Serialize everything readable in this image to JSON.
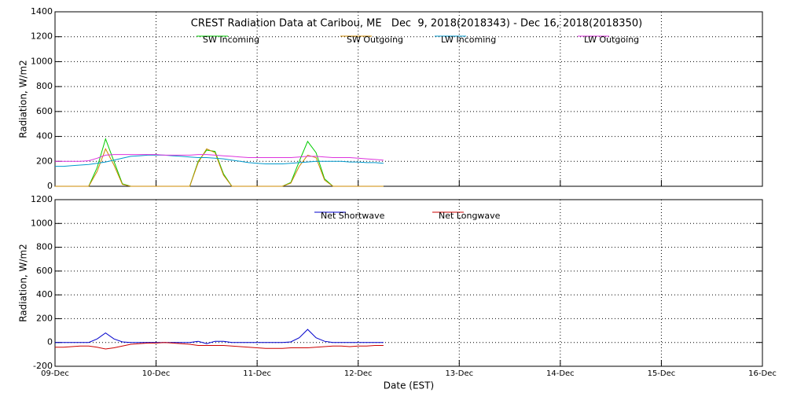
{
  "chart_data": [
    {
      "type": "line",
      "title": "CREST Radiation Data at Caribou, ME   Dec  9, 2018(2018343) - Dec 16, 2018(2018350)",
      "ylabel": "Radiation, W/m2",
      "x": [
        0,
        2,
        4,
        6,
        8,
        10,
        12,
        14,
        16,
        18,
        20,
        22,
        24,
        26,
        28,
        30,
        32,
        34,
        36,
        38,
        40,
        42,
        44,
        46,
        48,
        50,
        52,
        54,
        56,
        58,
        60,
        62,
        64,
        66,
        68,
        70,
        72,
        74,
        76,
        78
      ],
      "xlim": [
        0,
        168
      ],
      "xticks": [
        0,
        24,
        48,
        72,
        96,
        120,
        144,
        168
      ],
      "ylim": [
        0,
        1400
      ],
      "yticks": [
        0,
        200,
        400,
        600,
        800,
        1000,
        1200,
        1400
      ],
      "grid": true,
      "series": [
        {
          "name": "SW Incoming",
          "color": "#00cc00",
          "values": [
            0,
            0,
            0,
            0,
            0,
            150,
            380,
            200,
            20,
            0,
            0,
            0,
            0,
            0,
            0,
            0,
            0,
            200,
            290,
            280,
            100,
            0,
            0,
            0,
            0,
            0,
            0,
            0,
            30,
            200,
            360,
            270,
            60,
            0,
            0,
            0,
            0,
            0,
            0,
            0
          ]
        },
        {
          "name": "SW Outgoing",
          "color": "#cc8800",
          "values": [
            0,
            0,
            0,
            0,
            0,
            120,
            300,
            170,
            15,
            0,
            0,
            0,
            0,
            0,
            0,
            0,
            0,
            190,
            300,
            270,
            90,
            0,
            0,
            0,
            0,
            0,
            0,
            0,
            25,
            160,
            250,
            230,
            50,
            0,
            0,
            0,
            0,
            0,
            0,
            0
          ]
        },
        {
          "name": "LW Incoming",
          "color": "#0099cc",
          "values": [
            160,
            160,
            165,
            170,
            175,
            185,
            195,
            210,
            225,
            240,
            245,
            250,
            250,
            250,
            245,
            240,
            235,
            230,
            230,
            225,
            220,
            210,
            200,
            190,
            185,
            180,
            180,
            180,
            185,
            190,
            195,
            200,
            200,
            200,
            200,
            195,
            195,
            190,
            190,
            185
          ]
        },
        {
          "name": "LW Outgoing",
          "color": "#dd33dd",
          "values": [
            200,
            200,
            200,
            200,
            205,
            225,
            250,
            255,
            255,
            255,
            255,
            255,
            255,
            250,
            250,
            250,
            250,
            255,
            255,
            250,
            245,
            240,
            235,
            230,
            230,
            230,
            230,
            230,
            230,
            235,
            240,
            240,
            235,
            230,
            230,
            230,
            225,
            220,
            215,
            210
          ]
        }
      ]
    },
    {
      "type": "line",
      "ylabel": "Radiation, W/m2",
      "xlabel": "Date (EST)",
      "x": [
        0,
        2,
        4,
        6,
        8,
        10,
        12,
        14,
        16,
        18,
        20,
        22,
        24,
        26,
        28,
        30,
        32,
        34,
        36,
        38,
        40,
        42,
        44,
        46,
        48,
        50,
        52,
        54,
        56,
        58,
        60,
        62,
        64,
        66,
        68,
        70,
        72,
        74,
        76,
        78
      ],
      "xlim": [
        0,
        168
      ],
      "xticks": [
        {
          "value": 0,
          "label": "09-Dec"
        },
        {
          "value": 24,
          "label": "10-Dec"
        },
        {
          "value": 48,
          "label": "11-Dec"
        },
        {
          "value": 72,
          "label": "12-Dec"
        },
        {
          "value": 96,
          "label": "13-Dec"
        },
        {
          "value": 120,
          "label": "14-Dec"
        },
        {
          "value": 144,
          "label": "15-Dec"
        },
        {
          "value": 168,
          "label": "16-Dec"
        }
      ],
      "ylim": [
        -200,
        1200
      ],
      "yticks": [
        -200,
        0,
        200,
        400,
        600,
        800,
        1000,
        1200
      ],
      "grid": true,
      "series": [
        {
          "name": "Net Shortwave",
          "color": "#0000cc",
          "values": [
            0,
            0,
            0,
            0,
            0,
            30,
            80,
            30,
            5,
            0,
            0,
            0,
            0,
            0,
            0,
            0,
            0,
            10,
            -10,
            10,
            10,
            0,
            0,
            0,
            0,
            0,
            0,
            0,
            5,
            40,
            110,
            40,
            10,
            0,
            0,
            0,
            0,
            0,
            0,
            0
          ]
        },
        {
          "name": "Net Longwave",
          "color": "#cc0000",
          "values": [
            -40,
            -40,
            -35,
            -30,
            -30,
            -40,
            -55,
            -45,
            -30,
            -15,
            -10,
            -5,
            -5,
            0,
            -5,
            -10,
            -15,
            -25,
            -25,
            -25,
            -25,
            -30,
            -35,
            -40,
            -45,
            -50,
            -50,
            -50,
            -45,
            -45,
            -45,
            -40,
            -35,
            -30,
            -30,
            -35,
            -30,
            -30,
            -25,
            -25
          ]
        }
      ]
    }
  ]
}
